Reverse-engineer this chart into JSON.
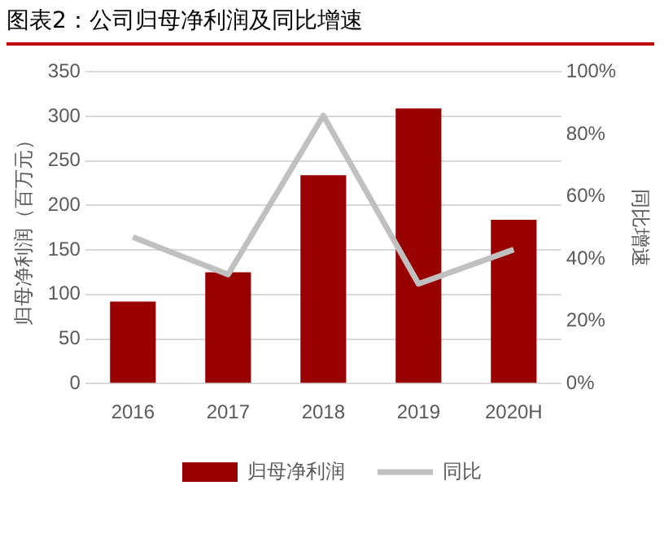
{
  "chart_data": {
    "type": "bar",
    "title": "图表2：公司归母净利润及同比增速",
    "ylabel": "归母净利润（百万元）",
    "y2label": "同比增速",
    "categories": [
      "2016",
      "2017",
      "2018",
      "2019",
      "2020H"
    ],
    "series": [
      {
        "name": "归母净利润",
        "color": "#990000",
        "values": [
          92,
          125,
          234,
          309,
          184
        ]
      },
      {
        "name": "同比",
        "type": "line",
        "axis": "y2",
        "color": "#c0c0c0",
        "values": [
          47,
          35,
          86,
          32,
          43
        ]
      }
    ],
    "ylim": [
      0,
      350
    ],
    "yticks": [
      0,
      50,
      100,
      150,
      200,
      250,
      300,
      350
    ],
    "y2lim": [
      0,
      100
    ],
    "y2ticks": [
      {
        "value": 0,
        "label": "0%"
      },
      {
        "value": 20,
        "label": "20%"
      },
      {
        "value": 40,
        "label": "40%"
      },
      {
        "value": 60,
        "label": "60%"
      },
      {
        "value": 80,
        "label": "80%"
      },
      {
        "value": 100,
        "label": "100%"
      }
    ],
    "grid": "y",
    "legend": "bottom",
    "marker": "none",
    "line_style": "solid"
  }
}
